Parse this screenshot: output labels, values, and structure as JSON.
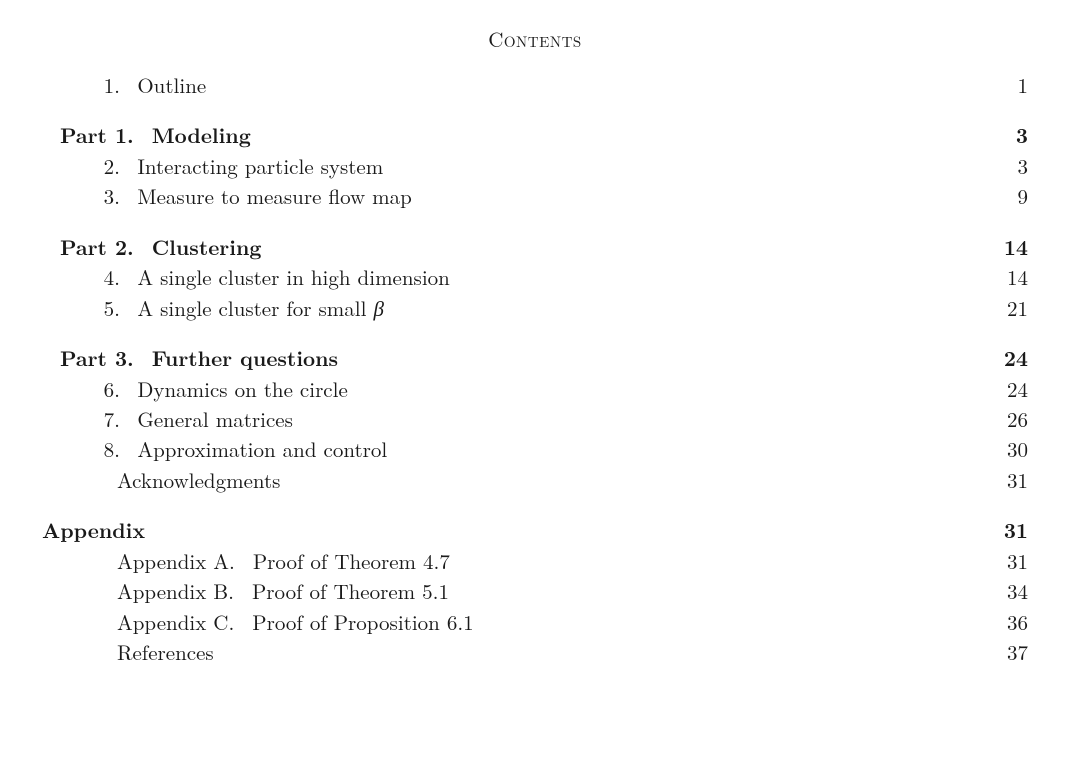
{
  "title": "Contents",
  "entries": [
    {
      "kind": "sec",
      "num": "1.",
      "label": "Outline",
      "page": "1"
    },
    {
      "kind": "gap"
    },
    {
      "kind": "part",
      "partlabel": "Part 1.",
      "title": "Modeling",
      "page": "3"
    },
    {
      "kind": "sec",
      "num": "2.",
      "label": "Interacting particle system",
      "page": "3"
    },
    {
      "kind": "sec",
      "num": "3.",
      "label": "Measure to measure flow map",
      "page": "9"
    },
    {
      "kind": "gap"
    },
    {
      "kind": "part",
      "partlabel": "Part 2.",
      "title": "Clustering",
      "page": "14"
    },
    {
      "kind": "sec",
      "num": "4.",
      "label": "A single cluster in high dimension",
      "page": "14"
    },
    {
      "kind": "sec_beta",
      "num": "5.",
      "label_prefix": "A single cluster for small ",
      "beta": "β",
      "page": "21"
    },
    {
      "kind": "gap"
    },
    {
      "kind": "part",
      "partlabel": "Part 3.",
      "title": "Further questions",
      "page": "24"
    },
    {
      "kind": "sec",
      "num": "6.",
      "label": "Dynamics on the circle",
      "page": "24"
    },
    {
      "kind": "sec",
      "num": "7.",
      "label": "General matrices",
      "page": "26"
    },
    {
      "kind": "sec",
      "num": "8.",
      "label": "Approximation and control",
      "page": "30"
    },
    {
      "kind": "ack",
      "label": "Acknowledgments",
      "page": "31"
    },
    {
      "kind": "gap"
    },
    {
      "kind": "appendix_head",
      "label": "Appendix",
      "page": "31"
    },
    {
      "kind": "appx",
      "alabel": "Appendix A.",
      "atitle": "Proof of Theorem 4.7",
      "page": "31"
    },
    {
      "kind": "appx",
      "alabel": "Appendix B.",
      "atitle": "Proof of Theorem 5.1",
      "page": "34"
    },
    {
      "kind": "appx",
      "alabel": "Appendix C.",
      "atitle": "Proof of Proposition 6.1",
      "page": "36"
    },
    {
      "kind": "refs",
      "label": "References",
      "page": "37"
    }
  ]
}
